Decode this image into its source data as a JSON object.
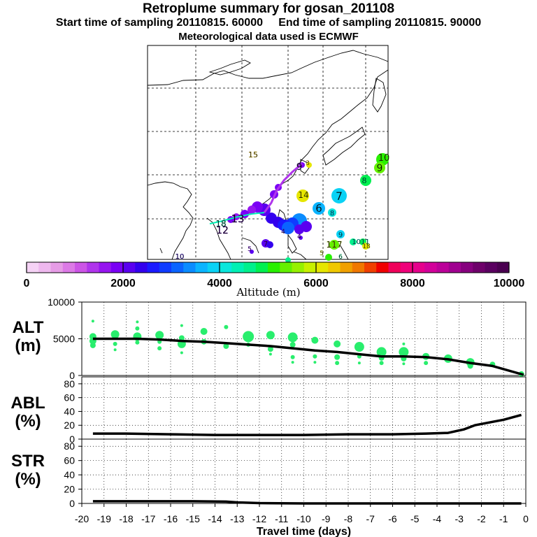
{
  "header": {
    "title": "Retroplume summary for gosan_201108",
    "start_label": "Start time of sampling 20110815. 60000",
    "end_label": "End time of sampling 20110815. 90000",
    "met_label": "Meteorological data used is ECMWF"
  },
  "colorbar": {
    "label": "Altitude (m)",
    "ticks": [
      "0",
      "2000",
      "4000",
      "6000",
      "8000",
      "10000"
    ],
    "colors": [
      "#f5d2f5",
      "#eeb8ee",
      "#e69ce6",
      "#dc7ae6",
      "#cc55e6",
      "#b035ec",
      "#9615f0",
      "#7a00f5",
      "#5a00f0",
      "#3300ee",
      "#1a1aff",
      "#0f3cff",
      "#0a64ff",
      "#0a8cff",
      "#0ab4ff",
      "#0ad2f5",
      "#0ae6dc",
      "#00f0b4",
      "#00f08c",
      "#00f050",
      "#28f000",
      "#64f000",
      "#96f000",
      "#c8f000",
      "#e6e600",
      "#f0c800",
      "#f0a000",
      "#f07800",
      "#f04000",
      "#f00000",
      "#f0005a",
      "#f0007a",
      "#e6008c",
      "#d2009a",
      "#bb0099",
      "#a00090",
      "#86007e",
      "#6e006a",
      "#5a0060",
      "#4a0050"
    ]
  },
  "map_labels": [
    {
      "t": "15",
      "c": "#f0c800"
    },
    {
      "t": "9",
      "c": "#7a00f5"
    },
    {
      "t": "3",
      "c": "#f0c800"
    },
    {
      "t": "14",
      "c": "#e6e600"
    },
    {
      "t": "7",
      "c": "#0ad2f5"
    },
    {
      "t": "8",
      "c": "#00f08c"
    },
    {
      "t": "9",
      "c": "#64f000"
    },
    {
      "t": "10",
      "c": "#64f000"
    },
    {
      "t": "6",
      "c": "#0ab4ff"
    },
    {
      "t": "8",
      "c": "#0ab4ff"
    },
    {
      "t": "9",
      "c": "#0ad2f5"
    },
    {
      "t": "117",
      "c": "#c8f000"
    },
    {
      "t": "1011",
      "c": "#0ae6dc"
    },
    {
      "t": "18",
      "c": "#e6e600"
    },
    {
      "t": "13",
      "c": "#7a00f5"
    },
    {
      "t": "18",
      "c": "#00f0b4"
    },
    {
      "t": "12",
      "c": "#7a00f5"
    },
    {
      "t": "4",
      "c": "#7a00f5"
    },
    {
      "t": "7",
      "c": "#7a00f5"
    },
    {
      "t": "5",
      "c": "#7a00f5"
    },
    {
      "t": "10",
      "c": "#3300ee"
    },
    {
      "t": "5",
      "c": "#c8f000"
    },
    {
      "t": "6",
      "c": "#00f08c"
    },
    {
      "t": "4",
      "c": "#7a00f5"
    }
  ],
  "chart_data": [
    {
      "type": "line",
      "title": "ALT (m)",
      "ylim": [
        0,
        10000
      ],
      "yticks": [
        0,
        5000,
        10000
      ],
      "xlim": [
        -20,
        0
      ],
      "x": [
        -19.5,
        -18.5,
        -17.5,
        -16.5,
        -15.5,
        -14.5,
        -13.5,
        -12.5,
        -11.5,
        -10.5,
        -9.5,
        -8.5,
        -7.5,
        -6.5,
        -5.5,
        -4.5,
        -3.5,
        -2.5,
        -1.5,
        -0.1
      ],
      "series": [
        {
          "name": "mean altitude",
          "values": [
            5000,
            5000,
            5000,
            4900,
            4700,
            4600,
            4400,
            4200,
            4000,
            3700,
            3400,
            3200,
            2900,
            2600,
            2600,
            2500,
            2200,
            1700,
            1300,
            100
          ]
        }
      ],
      "scatter": [
        {
          "x": -19.5,
          "y": 7400,
          "s": 2
        },
        {
          "x": -19.5,
          "y": 5300,
          "s": 5
        },
        {
          "x": -19.5,
          "y": 4700,
          "s": 5
        },
        {
          "x": -19.5,
          "y": 4100,
          "s": 4
        },
        {
          "x": -18.5,
          "y": 5600,
          "s": 6
        },
        {
          "x": -18.5,
          "y": 4300,
          "s": 3
        },
        {
          "x": -18.5,
          "y": 3500,
          "s": 2
        },
        {
          "x": -17.5,
          "y": 7300,
          "s": 2
        },
        {
          "x": -17.5,
          "y": 6400,
          "s": 3
        },
        {
          "x": -17.5,
          "y": 5300,
          "s": 6
        },
        {
          "x": -17.5,
          "y": 4500,
          "s": 3
        },
        {
          "x": -16.5,
          "y": 5500,
          "s": 6
        },
        {
          "x": -16.5,
          "y": 4600,
          "s": 3
        },
        {
          "x": -16.5,
          "y": 3700,
          "s": 3
        },
        {
          "x": -15.5,
          "y": 6800,
          "s": 2
        },
        {
          "x": -15.5,
          "y": 5100,
          "s": 4
        },
        {
          "x": -15.5,
          "y": 4300,
          "s": 6
        },
        {
          "x": -15.5,
          "y": 3100,
          "s": 2
        },
        {
          "x": -14.5,
          "y": 6000,
          "s": 5
        },
        {
          "x": -14.5,
          "y": 4600,
          "s": 4
        },
        {
          "x": -13.5,
          "y": 6600,
          "s": 3
        },
        {
          "x": -13.5,
          "y": 4000,
          "s": 4
        },
        {
          "x": -12.5,
          "y": 5300,
          "s": 8
        },
        {
          "x": -12.5,
          "y": 4200,
          "s": 3
        },
        {
          "x": -11.5,
          "y": 5500,
          "s": 6
        },
        {
          "x": -11.5,
          "y": 3600,
          "s": 4
        },
        {
          "x": -11.5,
          "y": 2900,
          "s": 2
        },
        {
          "x": -10.5,
          "y": 5200,
          "s": 7
        },
        {
          "x": -10.5,
          "y": 4200,
          "s": 4
        },
        {
          "x": -10.5,
          "y": 2500,
          "s": 3
        },
        {
          "x": -10.5,
          "y": 1800,
          "s": 2
        },
        {
          "x": -9.5,
          "y": 4800,
          "s": 5
        },
        {
          "x": -9.5,
          "y": 2600,
          "s": 3
        },
        {
          "x": -9.5,
          "y": 1800,
          "s": 2
        },
        {
          "x": -8.5,
          "y": 4300,
          "s": 5
        },
        {
          "x": -8.5,
          "y": 2500,
          "s": 4
        },
        {
          "x": -8.5,
          "y": 1700,
          "s": 3
        },
        {
          "x": -7.5,
          "y": 3900,
          "s": 7
        },
        {
          "x": -7.5,
          "y": 2600,
          "s": 3
        },
        {
          "x": -7.5,
          "y": 1700,
          "s": 2
        },
        {
          "x": -6.5,
          "y": 3200,
          "s": 7
        },
        {
          "x": -6.5,
          "y": 2400,
          "s": 4
        },
        {
          "x": -6.5,
          "y": 1700,
          "s": 3
        },
        {
          "x": -5.5,
          "y": 4300,
          "s": 2
        },
        {
          "x": -5.5,
          "y": 3200,
          "s": 7
        },
        {
          "x": -5.5,
          "y": 2300,
          "s": 4
        },
        {
          "x": -5.5,
          "y": 1600,
          "s": 2
        },
        {
          "x": -4.5,
          "y": 2600,
          "s": 5
        },
        {
          "x": -4.5,
          "y": 1700,
          "s": 3
        },
        {
          "x": -3.5,
          "y": 2300,
          "s": 6
        },
        {
          "x": -2.5,
          "y": 1800,
          "s": 6
        },
        {
          "x": -2.5,
          "y": 1300,
          "s": 4
        },
        {
          "x": -1.5,
          "y": 1500,
          "s": 4
        },
        {
          "x": -0.2,
          "y": 200,
          "s": 4
        }
      ]
    },
    {
      "type": "line",
      "title": "ABL (%)",
      "ylim": [
        0,
        90
      ],
      "yticks": [
        0,
        20,
        40,
        60,
        80
      ],
      "xlim": [
        -20,
        0
      ],
      "x": [
        -19.5,
        -18,
        -16,
        -14,
        -12,
        -10,
        -8,
        -6,
        -4.5,
        -3.5,
        -2.8,
        -2.3,
        -1.5,
        -1,
        -0.2
      ],
      "series": [
        {
          "name": "ABL fraction",
          "values": [
            8,
            8,
            7,
            6,
            6,
            6,
            7,
            7,
            8,
            9,
            14,
            20,
            25,
            28,
            35
          ]
        }
      ]
    },
    {
      "type": "line",
      "title": "STR (%)",
      "ylim": [
        0,
        90
      ],
      "yticks": [
        0,
        20,
        40,
        60,
        80
      ],
      "xlim": [
        -20,
        0
      ],
      "x": [
        -19.5,
        -17,
        -15,
        -13.5,
        -13,
        -12,
        -10,
        -5,
        -0.2
      ],
      "series": [
        {
          "name": "stratospheric fraction",
          "values": [
            3,
            3,
            3,
            2.5,
            1.5,
            0.5,
            0,
            0,
            0
          ]
        }
      ],
      "xticks": [
        "-20",
        "-19",
        "-18",
        "-17",
        "-16",
        "-15",
        "-14",
        "-13",
        "-12",
        "-11",
        "-10",
        "-9",
        "-8",
        "-7",
        "-6",
        "-5",
        "-4",
        "-3",
        "-2",
        "-1",
        "0"
      ],
      "xlabel": "Travel time (days)"
    }
  ],
  "panel_labels": {
    "alt": [
      "ALT",
      "(m)"
    ],
    "abl": [
      "ABL",
      "(%)"
    ],
    "str": [
      "STR",
      "(%)"
    ]
  }
}
